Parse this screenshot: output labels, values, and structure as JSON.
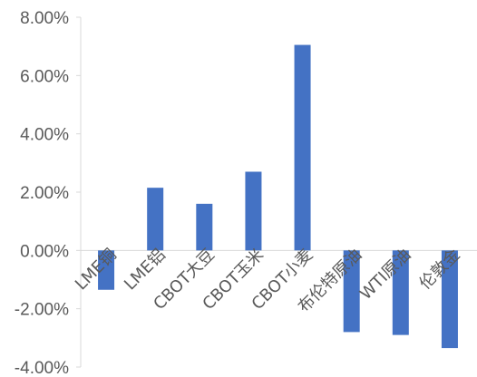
{
  "chart_data": {
    "type": "bar",
    "title": "",
    "xlabel": "",
    "ylabel": "",
    "categories": [
      "LME铜",
      "LME铝",
      "CBOT大豆",
      "CBOT玉米",
      "CBOT小麦",
      "布伦特原油",
      "WTI原油",
      "伦敦金"
    ],
    "values": [
      -1.35,
      2.15,
      1.6,
      2.7,
      7.05,
      -2.8,
      -2.9,
      -3.35
    ],
    "value_unit": "%",
    "ylim": [
      -4.0,
      8.0
    ],
    "yticks": [
      -4.0,
      -2.0,
      0.0,
      2.0,
      4.0,
      6.0,
      8.0
    ],
    "ytick_labels": [
      "-4.00%",
      "-2.00%",
      "0.00%",
      "2.00%",
      "4.00%",
      "6.00%",
      "8.00%"
    ],
    "bar_color": "#4472C4",
    "axis_color": "#d9d9d9",
    "grid": false,
    "legend": "none"
  }
}
